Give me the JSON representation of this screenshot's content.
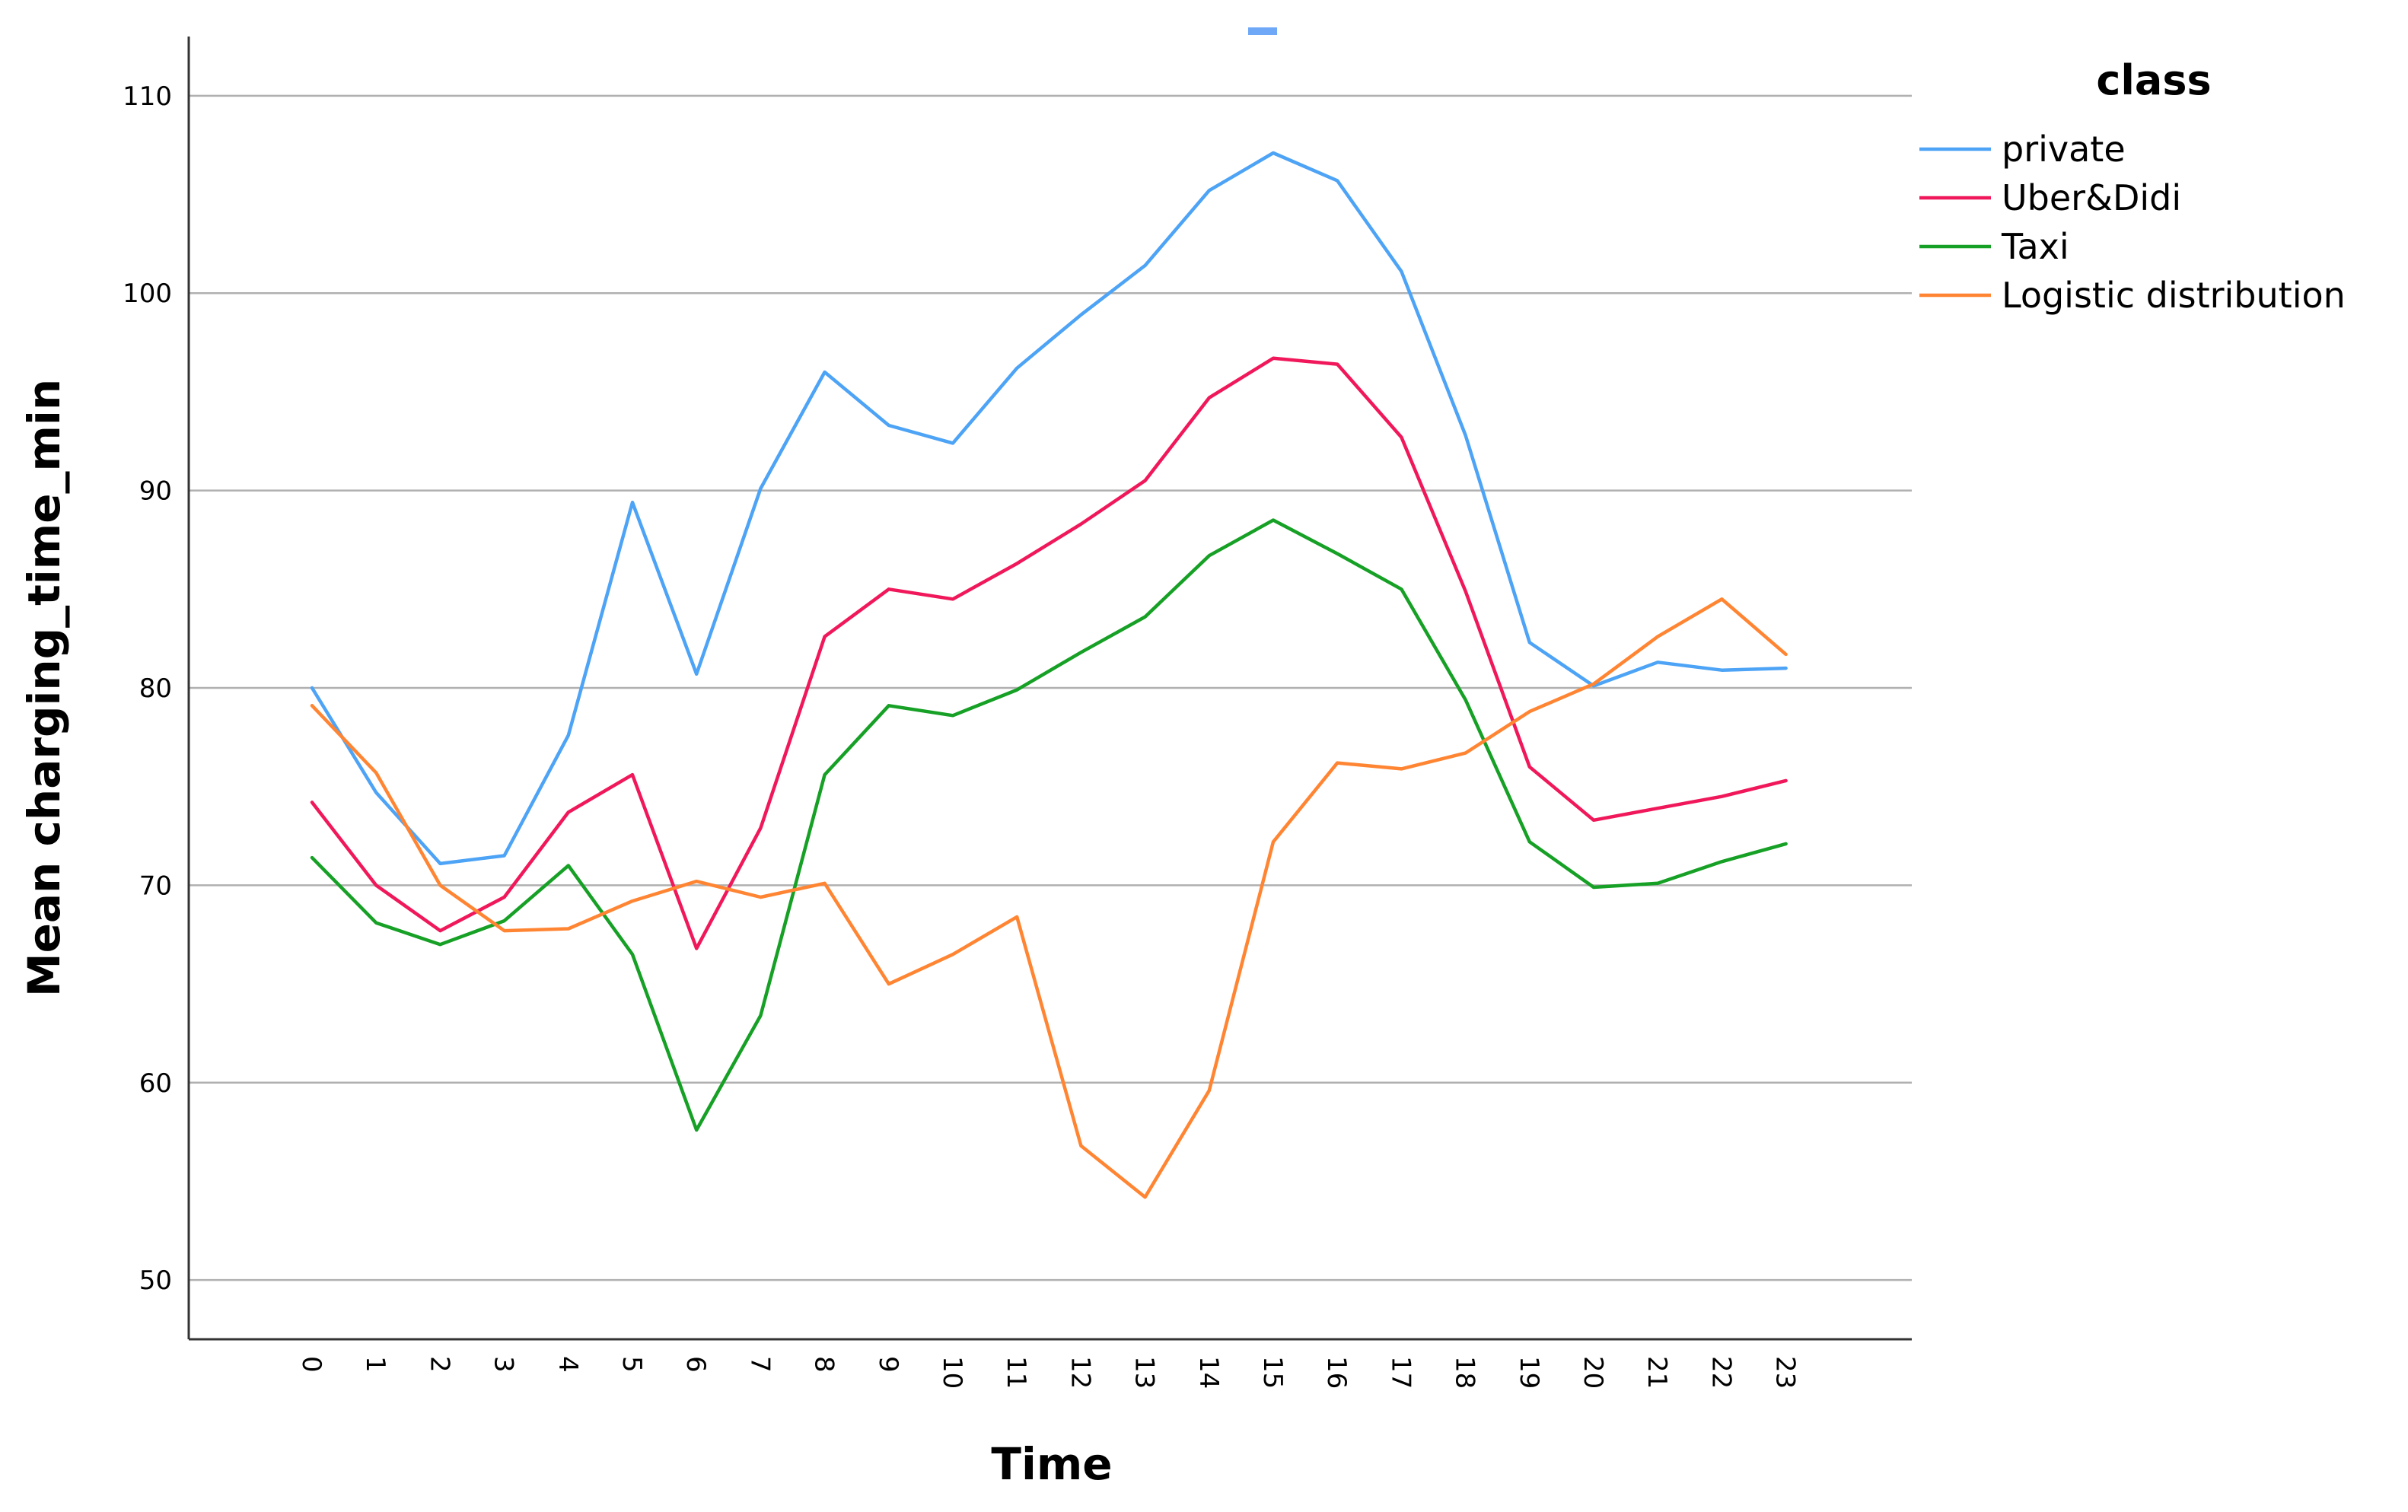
{
  "chart_data": {
    "type": "line",
    "xlabel": "Time",
    "ylabel": "Mean charging_time_min",
    "x": [
      0,
      1,
      2,
      3,
      4,
      5,
      6,
      7,
      8,
      9,
      10,
      11,
      12,
      13,
      14,
      15,
      16,
      17,
      18,
      19,
      20,
      21,
      22,
      23
    ],
    "ylim": [
      47,
      113
    ],
    "yticks": [
      50,
      60,
      70,
      80,
      90,
      100,
      110
    ],
    "grid": "horizontal",
    "legend": {
      "title": "class",
      "position": "right"
    },
    "series": [
      {
        "name": "private",
        "color": "#4da3f5",
        "values": [
          80.0,
          74.7,
          71.1,
          71.5,
          77.6,
          89.4,
          80.7,
          90.1,
          96.0,
          93.3,
          92.4,
          96.2,
          98.9,
          101.4,
          105.2,
          107.1,
          105.7,
          101.1,
          92.8,
          82.3,
          80.1,
          81.3,
          80.9,
          81.0
        ]
      },
      {
        "name": "Uber&Didi",
        "color": "#f0185a",
        "values": [
          74.2,
          70.0,
          67.7,
          69.4,
          73.7,
          75.6,
          66.8,
          72.9,
          82.6,
          85.0,
          84.5,
          86.3,
          88.3,
          90.5,
          94.7,
          96.7,
          96.4,
          92.7,
          84.9,
          76.0,
          73.3,
          73.9,
          74.5,
          75.3
        ]
      },
      {
        "name": "Taxi",
        "color": "#16a025",
        "values": [
          71.4,
          68.1,
          67.0,
          68.2,
          71.0,
          66.5,
          57.6,
          63.4,
          75.6,
          79.1,
          78.6,
          79.9,
          81.8,
          83.6,
          86.7,
          88.5,
          86.8,
          85.0,
          79.4,
          72.2,
          69.9,
          70.1,
          71.2,
          72.1
        ]
      },
      {
        "name": "Logistic distribution",
        "color": "#ff8533",
        "values": [
          79.1,
          75.7,
          70.0,
          67.7,
          67.8,
          69.2,
          70.2,
          69.4,
          70.1,
          65.0,
          66.5,
          68.4,
          56.8,
          54.2,
          59.6,
          72.2,
          76.2,
          75.9,
          76.7,
          78.8,
          80.2,
          82.6,
          84.5,
          81.7
        ]
      }
    ]
  }
}
